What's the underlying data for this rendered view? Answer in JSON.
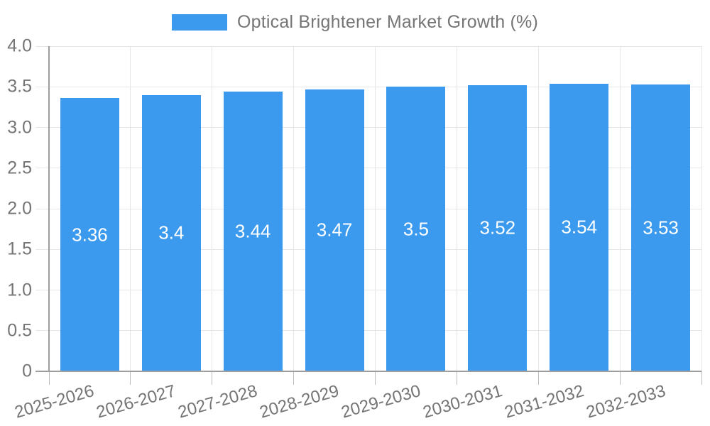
{
  "legend": {
    "label": "Optical Brightener Market Growth (%)",
    "swatch_color": "#3b9aed"
  },
  "chart_data": {
    "type": "bar",
    "title": "Optical Brightener Market Growth (%)",
    "categories": [
      "2025-2026",
      "2026-2027",
      "2027-2028",
      "2028-2029",
      "2029-2030",
      "2030-2031",
      "2031-2032",
      "2032-2033"
    ],
    "values": [
      3.36,
      3.4,
      3.44,
      3.47,
      3.5,
      3.52,
      3.54,
      3.53
    ],
    "data_labels": [
      "3.36",
      "3.4",
      "3.44",
      "3.47",
      "3.5",
      "3.52",
      "3.54",
      "3.53"
    ],
    "xlabel": "",
    "ylabel": "",
    "ylim": [
      0,
      4
    ],
    "ytick_values": [
      0,
      0.5,
      1,
      1.5,
      2,
      2.5,
      3,
      3.5,
      4
    ],
    "ytick_labels": [
      "0",
      "0.5",
      "1.0",
      "1.5",
      "2.0",
      "2.5",
      "3.0",
      "3.5",
      "4.0"
    ],
    "grid": true,
    "legend_position": "top",
    "x_label_rotation_deg": -16,
    "bar_color": "#3b9aed",
    "data_label_color": "#ffffff",
    "axis_color": "#9e9e9e",
    "grid_color": "#e6e6e6",
    "tick_color": "#bdbdbd",
    "label_color": "#757575"
  }
}
